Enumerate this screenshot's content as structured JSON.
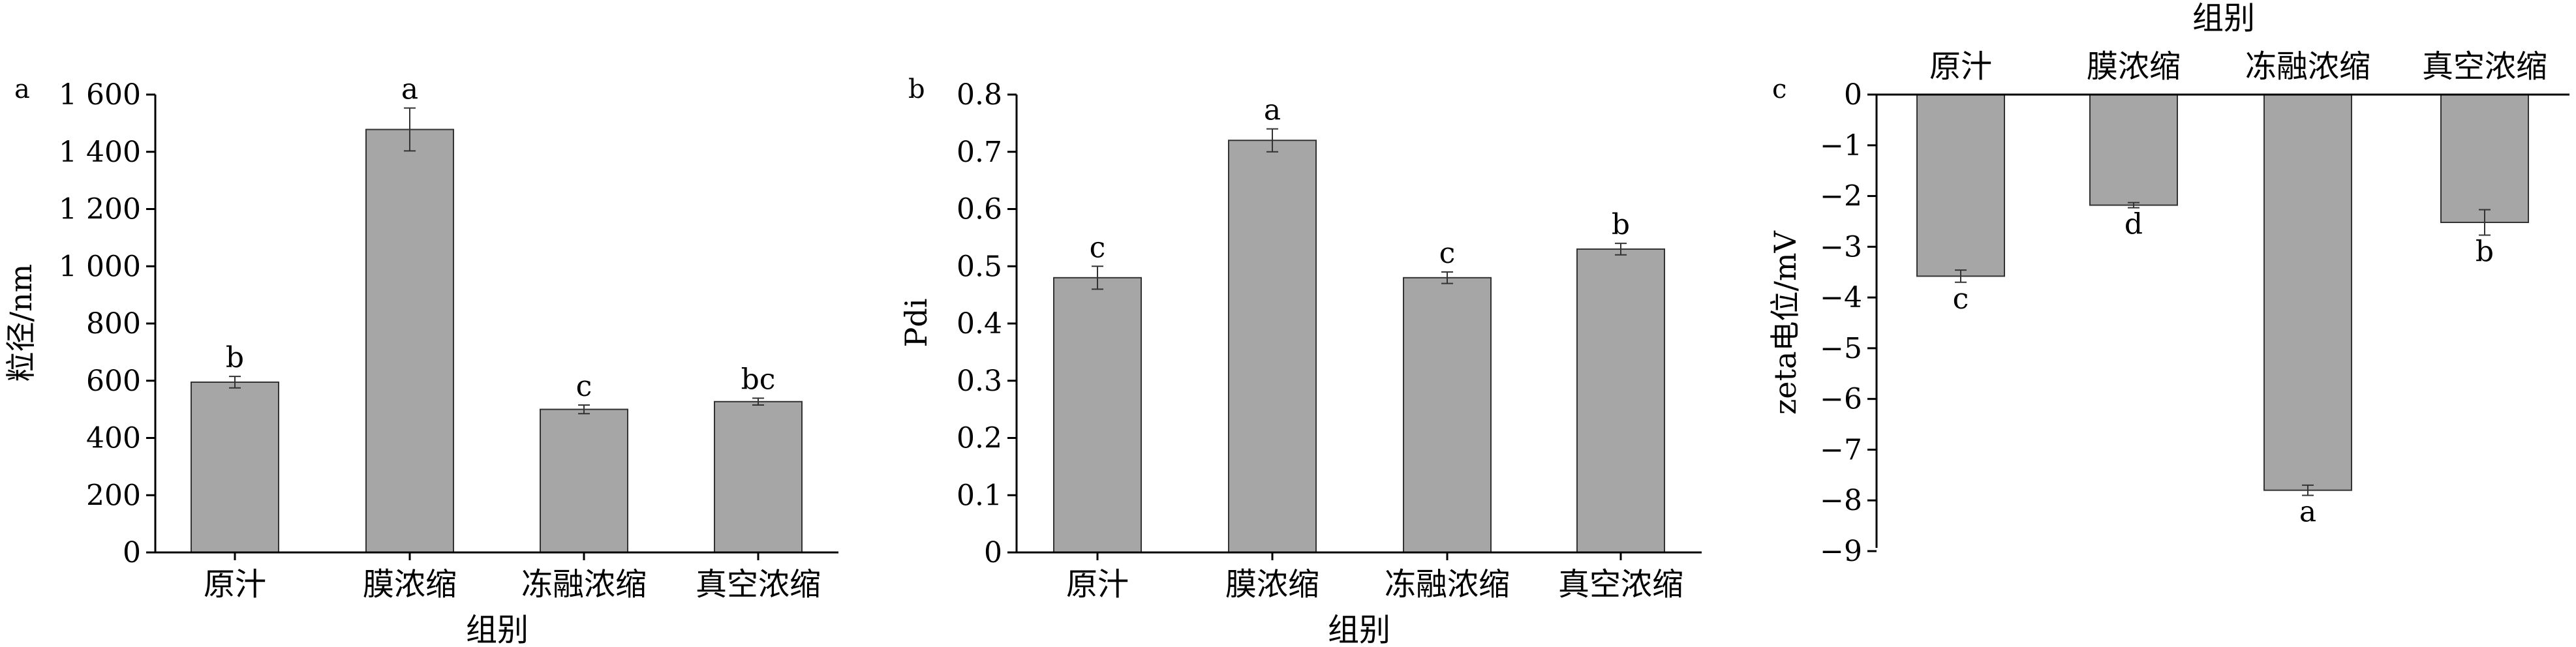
{
  "chart_data": [
    {
      "panel": "a",
      "type": "bar",
      "categories": [
        "原汁",
        "膜浓缩",
        "冻融浓缩",
        "真空浓缩"
      ],
      "values": [
        595,
        1478,
        500,
        527
      ],
      "errors": [
        20,
        75,
        15,
        12
      ],
      "sig_letters": [
        "b",
        "a",
        "c",
        "bc"
      ],
      "xlabel": "组别",
      "ylabel": "粒径/nm",
      "ylim": [
        0,
        1600
      ],
      "yticks": [
        0,
        200,
        400,
        600,
        800,
        1000,
        1200,
        1400,
        1600
      ],
      "ytick_labels": [
        "0",
        "200",
        "400",
        "600",
        "800",
        "1 000",
        "1 200",
        "1 400",
        "1 600"
      ],
      "bar_color": "#a6a6a6",
      "grid": false
    },
    {
      "panel": "b",
      "type": "bar",
      "categories": [
        "原汁",
        "膜浓缩",
        "冻融浓缩",
        "真空浓缩"
      ],
      "values": [
        0.48,
        0.72,
        0.48,
        0.53
      ],
      "errors": [
        0.02,
        0.02,
        0.01,
        0.01
      ],
      "sig_letters": [
        "c",
        "a",
        "c",
        "b"
      ],
      "xlabel": "组别",
      "ylabel": "Pdi",
      "ylim": [
        0,
        0.8
      ],
      "yticks": [
        0,
        0.1,
        0.2,
        0.3,
        0.4,
        0.5,
        0.6,
        0.7,
        0.8
      ],
      "ytick_labels": [
        "0",
        "0.1",
        "0.2",
        "0.3",
        "0.4",
        "0.5",
        "0.6",
        "0.7",
        "0.8"
      ],
      "bar_color": "#a6a6a6",
      "grid": false
    },
    {
      "panel": "c",
      "type": "bar",
      "categories": [
        "原汁",
        "膜浓缩",
        "冻融浓缩",
        "真空浓缩"
      ],
      "values": [
        -3.58,
        -2.18,
        -7.8,
        -2.52
      ],
      "errors": [
        0.12,
        0.05,
        0.1,
        0.25
      ],
      "sig_letters": [
        "c",
        "d",
        "a",
        "b"
      ],
      "xlabel": "组别",
      "xaxis_position": "top",
      "ylabel": "zeta电位/mV",
      "ylim": [
        -9,
        0
      ],
      "yticks": [
        0,
        -1,
        -2,
        -3,
        -4,
        -5,
        -6,
        -7,
        -8,
        -9
      ],
      "ytick_labels": [
        "0",
        "−1",
        "−2",
        "−3",
        "−4",
        "−5",
        "−6",
        "−7",
        "−8",
        "−9"
      ],
      "bar_color": "#a6a6a6",
      "grid": false
    }
  ]
}
